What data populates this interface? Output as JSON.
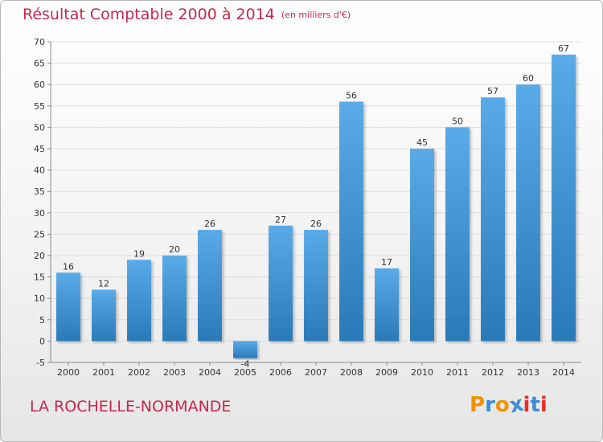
{
  "title": "Résultat Comptable 2000 à 2014",
  "subtitle": "(en milliers d'€)",
  "commune": "LA ROCHELLE-NORMANDE",
  "logo": {
    "text": "Proxiti",
    "letters": [
      "P",
      "r",
      "o",
      "x",
      "i",
      "t",
      "i"
    ],
    "colors": [
      "#f39200",
      "#3a8fd6",
      "#f39200",
      "#3a8fd6",
      "#e6332a",
      "#3a8fd6",
      "#e6332a"
    ]
  },
  "colors": {
    "title": "#c8264f",
    "bar_top": "#5aaae8",
    "bar_bottom": "#2a79b8",
    "grid": "#dddddd"
  },
  "chart_data": {
    "type": "bar",
    "categories": [
      "2000",
      "2001",
      "2002",
      "2003",
      "2004",
      "2005",
      "2006",
      "2007",
      "2008",
      "2009",
      "2010",
      "2011",
      "2012",
      "2013",
      "2014"
    ],
    "values": [
      16,
      12,
      19,
      20,
      26,
      -4,
      27,
      26,
      56,
      17,
      45,
      50,
      57,
      60,
      67
    ],
    "data_labels": [
      "16",
      "12",
      "19",
      "20",
      "26",
      "-4",
      "27",
      "26",
      "56",
      "17",
      "45",
      "50",
      "57",
      "60",
      "67"
    ],
    "ylim": [
      -5,
      70
    ],
    "yticks": [
      -5,
      0,
      5,
      10,
      15,
      20,
      25,
      30,
      35,
      40,
      45,
      50,
      55,
      60,
      65,
      70
    ],
    "grid": true,
    "legend": "none"
  }
}
